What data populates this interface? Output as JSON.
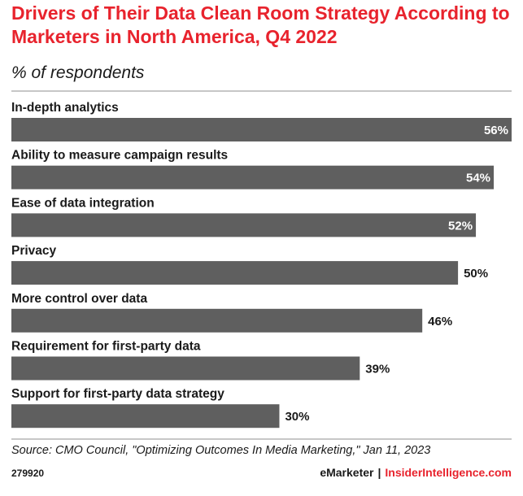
{
  "header": {
    "title": "Drivers of Their Data Clean Room Strategy According to Marketers in North America, Q4 2022",
    "subtitle": "% of respondents"
  },
  "chart_data": {
    "type": "bar",
    "orientation": "horizontal",
    "categories": [
      "In-depth analytics",
      "Ability to measure campaign results",
      "Ease of data integration",
      "Privacy",
      "More control over data",
      "Requirement for first-party data",
      "Support for first-party data strategy"
    ],
    "values": [
      56,
      54,
      52,
      50,
      46,
      39,
      30
    ],
    "value_labels": [
      "56%",
      "54%",
      "52%",
      "50%",
      "46%",
      "39%",
      "30%"
    ],
    "xlim": [
      0,
      56
    ],
    "grid": false,
    "legend": "none",
    "bar_color": "#5f5f5f"
  },
  "footer": {
    "source": "Source: CMO Council, \"Optimizing Outcomes In Media Marketing,\" Jan 11, 2023",
    "chart_id": "279920",
    "brand_emarketer": "eMarketer",
    "brand_separator": "|",
    "brand_insider": "InsiderIntelligence.com"
  },
  "colors": {
    "accent": "#e8232d",
    "bar": "#5f5f5f",
    "text": "#1a1a1a"
  }
}
